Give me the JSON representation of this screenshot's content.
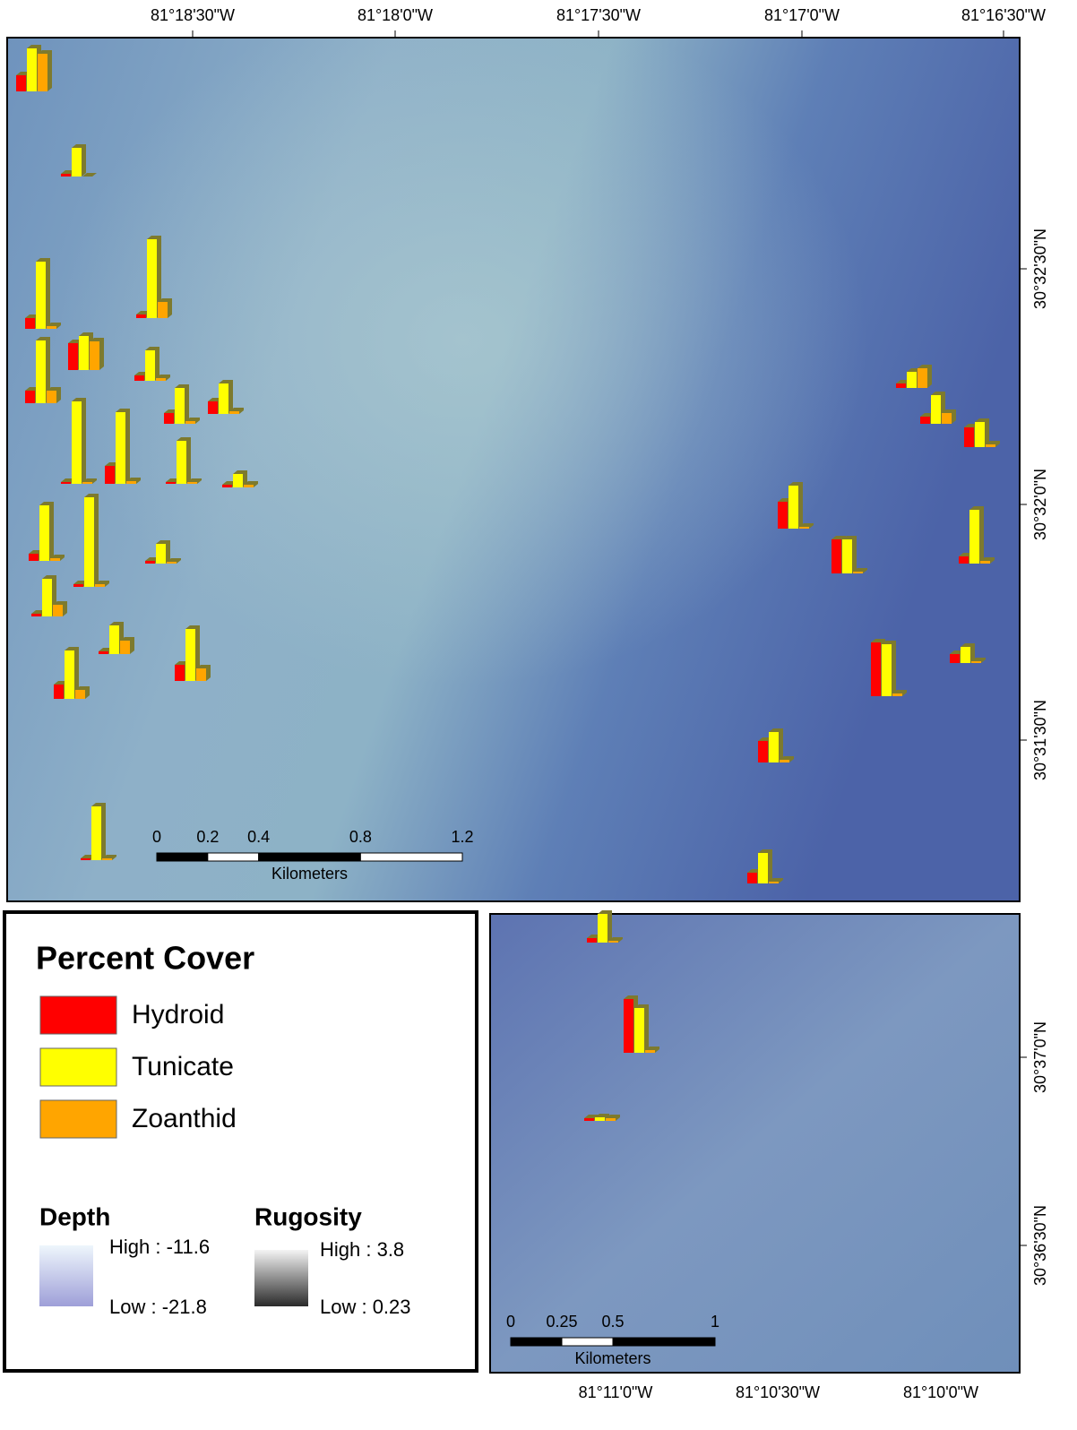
{
  "main_map": {
    "longitude_labels": [
      "81°18'30\"W",
      "81°18'0\"W",
      "81°17'30\"W",
      "81°17'0\"W",
      "81°16'30\"W"
    ],
    "latitude_labels": [
      "30°32'30\"N",
      "30°32'0\"N",
      "30°31'30\"N"
    ],
    "scale_bar": {
      "ticks": [
        0,
        0.2,
        0.4,
        0.8,
        1.2
      ],
      "unit": "Kilometers"
    },
    "sites": [
      [
        18,
        48,
        42
      ],
      [
        3,
        32,
        0
      ],
      [
        12,
        75,
        3
      ],
      [
        4,
        88,
        18
      ],
      [
        14,
        70,
        14
      ],
      [
        30,
        38,
        32
      ],
      [
        6,
        34,
        3
      ],
      [
        12,
        40,
        3
      ],
      [
        14,
        34,
        3
      ],
      [
        2,
        92,
        2
      ],
      [
        20,
        80,
        3
      ],
      [
        2,
        48,
        2
      ],
      [
        3,
        15,
        3
      ],
      [
        8,
        62,
        3
      ],
      [
        3,
        100,
        3
      ],
      [
        3,
        22,
        2
      ],
      [
        3,
        42,
        13
      ],
      [
        3,
        32,
        15
      ],
      [
        16,
        54,
        10
      ],
      [
        18,
        58,
        14
      ],
      [
        2,
        60,
        2
      ],
      [
        5,
        18,
        22
      ],
      [
        8,
        32,
        12
      ],
      [
        22,
        28,
        3
      ],
      [
        30,
        48,
        2
      ],
      [
        38,
        38,
        2
      ],
      [
        8,
        60,
        3
      ],
      [
        60,
        58,
        3
      ],
      [
        10,
        18,
        2
      ],
      [
        24,
        34,
        3
      ],
      [
        12,
        34,
        2
      ]
    ]
  },
  "inset_map": {
    "longitude_labels": [
      "81°11'0\"W",
      "81°10'30\"W",
      "81°10'0\"W"
    ],
    "latitude_labels": [
      "30°37'0\"N",
      "30°36'30\"N"
    ],
    "scale_bar": {
      "ticks": [
        0,
        0.25,
        0.5,
        1
      ],
      "unit": "Kilometers"
    },
    "sites": [
      [
        5,
        32,
        2
      ],
      [
        60,
        50,
        3
      ],
      [
        3,
        4,
        3
      ]
    ]
  },
  "legend": {
    "title": "Percent Cover",
    "series": [
      {
        "name": "Hydroid",
        "color": "#ff0000"
      },
      {
        "name": "Tunicate",
        "color": "#ffff00"
      },
      {
        "name": "Zoanthid",
        "color": "#ffa500"
      }
    ],
    "depth": {
      "title": "Depth",
      "high": "High : -11.6",
      "low": "Low : -21.8"
    },
    "rugosity": {
      "title": "Rugosity",
      "high": "High : 3.8",
      "low": "Low : 0.23"
    }
  }
}
